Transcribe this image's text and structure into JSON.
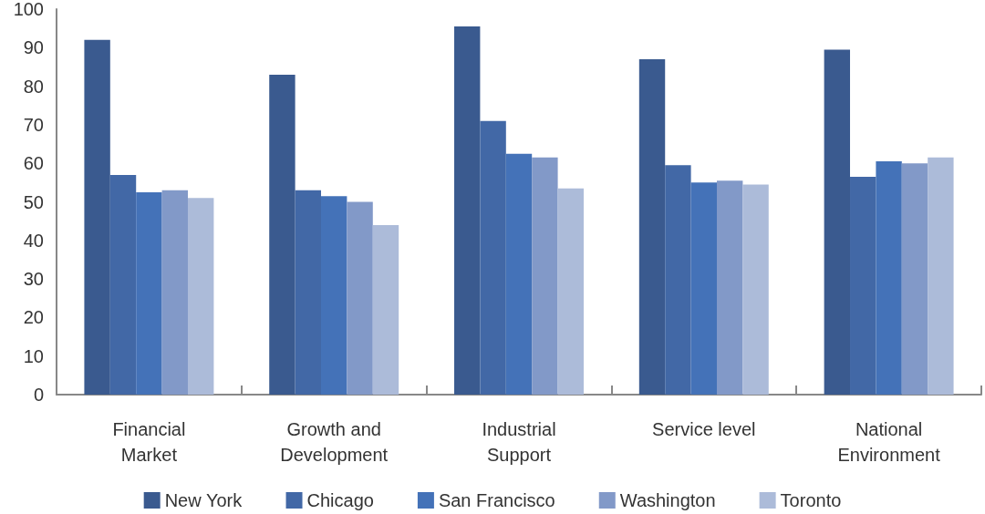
{
  "chart_data": {
    "type": "bar",
    "categories": [
      "Financial\nMarket",
      "Growth and\nDevelopment",
      "Industrial\nSupport",
      "Service level",
      "National\nEnvironment"
    ],
    "series": [
      {
        "name": "New York",
        "color": "#3a5a8f",
        "values": [
          92,
          83,
          95.5,
          87,
          89.5
        ]
      },
      {
        "name": "Chicago",
        "color": "#4268a6",
        "values": [
          57,
          53,
          71,
          59.5,
          56.5
        ]
      },
      {
        "name": "San Francisco",
        "color": "#4472b8",
        "values": [
          52.5,
          51.5,
          62.5,
          55,
          60.5
        ]
      },
      {
        "name": "Washington",
        "color": "#8299c8",
        "values": [
          53,
          50,
          61.5,
          55.5,
          60
        ]
      },
      {
        "name": "Toronto",
        "color": "#acbbd9",
        "values": [
          51,
          44,
          53.5,
          54.5,
          61.5
        ]
      }
    ],
    "ylim": [
      0,
      100
    ],
    "yticks": [
      0,
      10,
      20,
      30,
      40,
      50,
      60,
      70,
      80,
      90,
      100
    ],
    "grid": false,
    "legend": "bottom"
  }
}
